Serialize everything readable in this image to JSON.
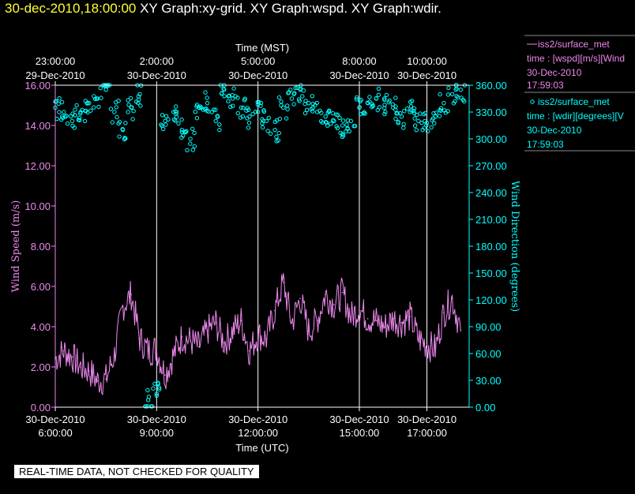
{
  "header": {
    "datetime": "30-dec-2010,18:00:00",
    "graphs": "XY Graph:xy-grid.  XY Graph:wspd.  XY Graph:wdir."
  },
  "colors": {
    "speed": "#ee88ee",
    "direction": "#00ffff",
    "grid": "#ffffff",
    "header_date": "#ffff33"
  },
  "legend": {
    "speed_name": "iss2/surface_met",
    "speed_line": "time : [wspd][m/s][Wind",
    "speed_date": "30-Dec-2010",
    "speed_time": "17:59:03",
    "dir_name": "iss2/surface_met",
    "dir_line": "time : [wdir][degrees][V",
    "dir_date": "30-Dec-2010",
    "dir_time": "17:59:03"
  },
  "footer": {
    "note": "REAL-TIME DATA, NOT CHECKED FOR QUALITY"
  },
  "chart_data": {
    "type": "line",
    "xlabel": "Time (UTC)",
    "x2label": "Time (MST)",
    "ylabel": "Wind Speed (m/s)",
    "y2label": "Wind Direction (degrees)",
    "xlim": [
      "2010-12-30T06:00",
      "2010-12-30T18:15"
    ],
    "ylim": [
      0,
      16
    ],
    "y2lim": [
      0,
      360
    ],
    "grid": true,
    "yticks": [
      "0.00",
      "2.00",
      "4.00",
      "6.00",
      "8.00",
      "10.00",
      "12.00",
      "14.00",
      "16.00"
    ],
    "y2ticks": [
      "0.00",
      "30.00",
      "60.00",
      "90.00",
      "120.00",
      "150.00",
      "180.00",
      "210.00",
      "240.00",
      "270.00",
      "300.00",
      "330.00",
      "360.00"
    ],
    "xticks_bottom": [
      {
        "t": "2010-12-30T06:00",
        "date": "30-Dec-2010",
        "time": "6:00:00"
      },
      {
        "t": "2010-12-30T09:00",
        "date": "30-Dec-2010",
        "time": "9:00:00"
      },
      {
        "t": "2010-12-30T12:00",
        "date": "30-Dec-2010",
        "time": "12:00:00"
      },
      {
        "t": "2010-12-30T15:00",
        "date": "30-Dec-2010",
        "time": "15:00:00"
      },
      {
        "t": "2010-12-30T17:00",
        "date": "30-Dec-2010",
        "time": "17:00:00"
      }
    ],
    "xticks_top": [
      {
        "t": "2010-12-30T06:00",
        "time": "23:00:00",
        "date": "29-Dec-2010"
      },
      {
        "t": "2010-12-30T09:00",
        "time": "2:00:00",
        "date": "30-Dec-2010"
      },
      {
        "t": "2010-12-30T12:00",
        "time": "5:00:00",
        "date": "30-Dec-2010"
      },
      {
        "t": "2010-12-30T15:00",
        "time": "8:00:00",
        "date": "30-Dec-2010"
      },
      {
        "t": "2010-12-30T17:00",
        "time": "10:00:00",
        "date": "30-Dec-2010"
      }
    ],
    "series": [
      {
        "name": "iss2/surface_met time : [wspd][m/s][Wind",
        "axis": "left",
        "style": "line",
        "x": [
          "2010-12-30T06:00",
          "2010-12-30T06:15",
          "2010-12-30T06:30",
          "2010-12-30T06:45",
          "2010-12-30T07:00",
          "2010-12-30T07:15",
          "2010-12-30T07:30",
          "2010-12-30T07:45",
          "2010-12-30T08:00",
          "2010-12-30T08:15",
          "2010-12-30T08:30",
          "2010-12-30T08:45",
          "2010-12-30T09:00",
          "2010-12-30T09:15",
          "2010-12-30T09:30",
          "2010-12-30T09:45",
          "2010-12-30T10:00",
          "2010-12-30T10:15",
          "2010-12-30T10:30",
          "2010-12-30T10:45",
          "2010-12-30T11:00",
          "2010-12-30T11:15",
          "2010-12-30T11:30",
          "2010-12-30T11:45",
          "2010-12-30T12:00",
          "2010-12-30T12:15",
          "2010-12-30T12:30",
          "2010-12-30T12:45",
          "2010-12-30T13:00",
          "2010-12-30T13:15",
          "2010-12-30T13:30",
          "2010-12-30T13:45",
          "2010-12-30T14:00",
          "2010-12-30T14:15",
          "2010-12-30T14:30",
          "2010-12-30T14:45",
          "2010-12-30T15:00",
          "2010-12-30T15:15",
          "2010-12-30T15:30",
          "2010-12-30T15:45",
          "2010-12-30T16:00",
          "2010-12-30T16:15",
          "2010-12-30T16:30",
          "2010-12-30T16:45",
          "2010-12-30T17:00",
          "2010-12-30T17:15",
          "2010-12-30T17:30",
          "2010-12-30T17:45",
          "2010-12-30T18:00"
        ],
        "values": [
          2.4,
          2.8,
          2.5,
          2.0,
          1.8,
          1.3,
          1.4,
          2.6,
          5.0,
          5.6,
          3.4,
          2.8,
          2.9,
          1.6,
          2.6,
          3.5,
          3.3,
          3.0,
          3.8,
          4.2,
          3.2,
          3.8,
          4.3,
          2.8,
          3.6,
          3.4,
          4.8,
          6.2,
          4.2,
          5.4,
          3.8,
          4.3,
          5.6,
          5.1,
          5.7,
          4.5,
          4.9,
          4.4,
          4.3,
          4.0,
          4.4,
          4.2,
          4.5,
          3.4,
          3.1,
          2.9,
          4.7,
          5.4,
          3.8
        ]
      },
      {
        "name": "iss2/surface_met time : [wdir][degrees][V",
        "axis": "right",
        "style": "scatter",
        "x": [
          "2010-12-30T06:00",
          "2010-12-30T06:15",
          "2010-12-30T06:30",
          "2010-12-30T06:45",
          "2010-12-30T07:00",
          "2010-12-30T07:15",
          "2010-12-30T07:30",
          "2010-12-30T07:45",
          "2010-12-30T08:00",
          "2010-12-30T08:15",
          "2010-12-30T08:30",
          "2010-12-30T08:45",
          "2010-12-30T09:00",
          "2010-12-30T09:15",
          "2010-12-30T09:30",
          "2010-12-30T09:45",
          "2010-12-30T10:00",
          "2010-12-30T10:15",
          "2010-12-30T10:30",
          "2010-12-30T10:45",
          "2010-12-30T11:00",
          "2010-12-30T11:15",
          "2010-12-30T11:30",
          "2010-12-30T11:45",
          "2010-12-30T12:00",
          "2010-12-30T12:15",
          "2010-12-30T12:30",
          "2010-12-30T12:45",
          "2010-12-30T13:00",
          "2010-12-30T13:15",
          "2010-12-30T13:30",
          "2010-12-30T13:45",
          "2010-12-30T14:00",
          "2010-12-30T14:15",
          "2010-12-30T14:30",
          "2010-12-30T14:45",
          "2010-12-30T15:00",
          "2010-12-30T15:15",
          "2010-12-30T15:30",
          "2010-12-30T15:45",
          "2010-12-30T16:00",
          "2010-12-30T16:15",
          "2010-12-30T16:30",
          "2010-12-30T16:45",
          "2010-12-30T17:00",
          "2010-12-30T17:15",
          "2010-12-30T17:30",
          "2010-12-30T17:45",
          "2010-12-30T18:00"
        ],
        "values": [
          335,
          330,
          320,
          330,
          340,
          345,
          355,
          330,
          310,
          335,
          350,
          8,
          15,
          320,
          330,
          310,
          300,
          335,
          340,
          320,
          355,
          345,
          335,
          325,
          330,
          320,
          310,
          335,
          345,
          355,
          340,
          330,
          325,
          320,
          315,
          320,
          335,
          340,
          345,
          338,
          335,
          325,
          330,
          320,
          318,
          325,
          340,
          350,
          355
        ]
      }
    ]
  }
}
